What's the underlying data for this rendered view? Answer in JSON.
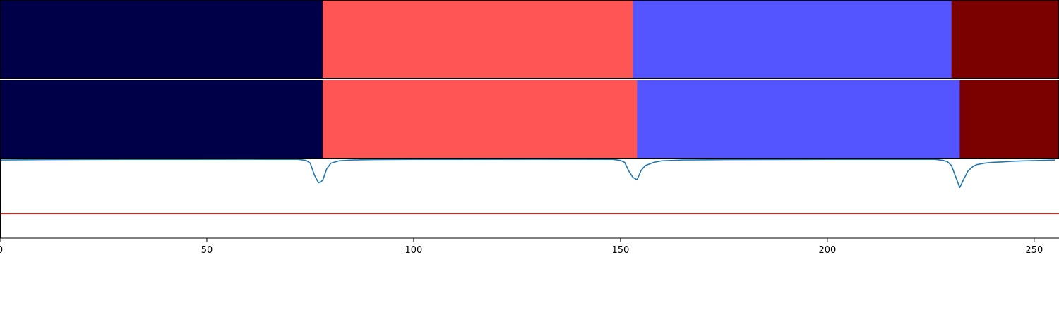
{
  "chart_data": [
    {
      "type": "heatmap",
      "panel": "segmentation-track-1",
      "x_range": [
        0,
        256
      ],
      "segments": [
        {
          "start": 0,
          "end": 78,
          "color": "#000048"
        },
        {
          "start": 78,
          "end": 153,
          "color": "#ff5555"
        },
        {
          "start": 153,
          "end": 230,
          "color": "#5555ff"
        },
        {
          "start": 230,
          "end": 256,
          "color": "#7b0000"
        }
      ]
    },
    {
      "type": "heatmap",
      "panel": "segmentation-track-2",
      "x_range": [
        0,
        256
      ],
      "segments": [
        {
          "start": 0,
          "end": 78,
          "color": "#000048"
        },
        {
          "start": 78,
          "end": 154,
          "color": "#ff5555"
        },
        {
          "start": 154,
          "end": 232,
          "color": "#5555ff"
        },
        {
          "start": 232,
          "end": 256,
          "color": "#7b0000"
        }
      ]
    },
    {
      "type": "line",
      "panel": "boundary-score",
      "xlim": [
        0,
        256
      ],
      "ylim": [
        0,
        1
      ],
      "xticks": [
        0,
        50,
        100,
        150,
        200,
        250
      ],
      "grid": false,
      "threshold": {
        "value": 0.31,
        "color": "#d62728"
      },
      "series": [
        {
          "color": "#1f77b4",
          "points": [
            [
              0,
              0.99
            ],
            [
              10,
              0.995
            ],
            [
              30,
              0.998
            ],
            [
              60,
              0.999
            ],
            [
              72,
              0.998
            ],
            [
              74,
              0.985
            ],
            [
              75,
              0.95
            ],
            [
              76,
              0.8
            ],
            [
              77,
              0.7
            ],
            [
              78,
              0.73
            ],
            [
              79,
              0.88
            ],
            [
              80,
              0.95
            ],
            [
              82,
              0.98
            ],
            [
              85,
              0.99
            ],
            [
              90,
              0.995
            ],
            [
              100,
              0.998
            ],
            [
              130,
              0.999
            ],
            [
              148,
              0.998
            ],
            [
              150,
              0.985
            ],
            [
              151,
              0.96
            ],
            [
              152,
              0.85
            ],
            [
              153,
              0.77
            ],
            [
              154,
              0.74
            ],
            [
              155,
              0.86
            ],
            [
              156,
              0.92
            ],
            [
              158,
              0.96
            ],
            [
              160,
              0.98
            ],
            [
              165,
              0.99
            ],
            [
              175,
              0.995
            ],
            [
              200,
              0.998
            ],
            [
              226,
              0.998
            ],
            [
              228,
              0.985
            ],
            [
              229,
              0.97
            ],
            [
              230,
              0.92
            ],
            [
              231,
              0.78
            ],
            [
              232,
              0.64
            ],
            [
              233,
              0.75
            ],
            [
              234,
              0.85
            ],
            [
              235,
              0.9
            ],
            [
              236,
              0.93
            ],
            [
              238,
              0.95
            ],
            [
              240,
              0.96
            ],
            [
              242,
              0.965
            ],
            [
              245,
              0.975
            ],
            [
              248,
              0.98
            ],
            [
              252,
              0.985
            ],
            [
              255,
              0.99
            ]
          ]
        }
      ]
    }
  ]
}
